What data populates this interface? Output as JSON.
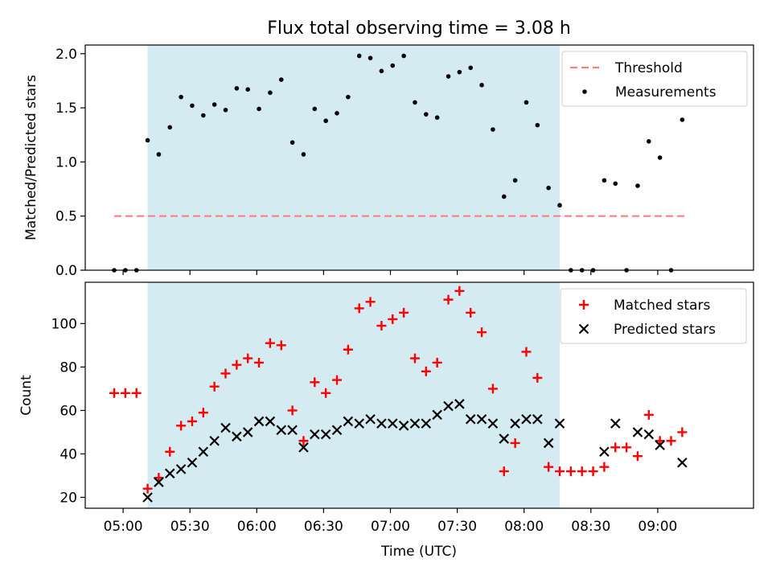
{
  "figure": {
    "title": "Flux total observing time = 3.08 h",
    "xlabel": "Time (UTC)",
    "x_ticks": [
      "05:00",
      "05:30",
      "06:00",
      "06:30",
      "07:00",
      "07:30",
      "08:00",
      "08:30",
      "09:00"
    ]
  },
  "colors": {
    "shade": "#d4ebf1",
    "threshold": "#ff7f7f",
    "measurement": "#000000",
    "matched": "#ff0000",
    "predicted": "#000000"
  },
  "chart_data": [
    {
      "type": "scatter",
      "ylabel": "Matched/Predicted stars",
      "xlim": [
        "04:43",
        "09:43"
      ],
      "ylim": [
        0,
        2.08
      ],
      "y_ticks": [
        0.0,
        0.5,
        1.0,
        1.5,
        2.0
      ],
      "y_tick_labels": [
        "0.0",
        "0.5",
        "1.0",
        "1.5",
        "2.0"
      ],
      "shaded_region": [
        "05:11",
        "08:16"
      ],
      "threshold": {
        "name": "Threshold",
        "y": 0.5,
        "x_range": [
          "04:56",
          "09:12"
        ],
        "style": "dashed"
      },
      "legend_position": "top-right",
      "series": [
        {
          "name": "Measurements",
          "x": [
            "04:56",
            "05:01",
            "05:06",
            "05:11",
            "05:16",
            "05:21",
            "05:26",
            "05:31",
            "05:36",
            "05:41",
            "05:46",
            "05:51",
            "05:56",
            "06:01",
            "06:06",
            "06:11",
            "06:16",
            "06:21",
            "06:26",
            "06:31",
            "06:36",
            "06:41",
            "06:46",
            "06:51",
            "06:56",
            "07:01",
            "07:06",
            "07:11",
            "07:16",
            "07:21",
            "07:26",
            "07:31",
            "07:36",
            "07:41",
            "07:46",
            "07:51",
            "07:56",
            "08:01",
            "08:06",
            "08:11",
            "08:16",
            "08:21",
            "08:26",
            "08:31",
            "08:36",
            "08:41",
            "08:46",
            "08:51",
            "08:56",
            "09:01",
            "09:06",
            "09:11"
          ],
          "y": [
            0,
            0,
            0,
            1.2,
            1.07,
            1.32,
            1.6,
            1.52,
            1.43,
            1.53,
            1.48,
            1.68,
            1.67,
            1.49,
            1.64,
            1.76,
            1.18,
            1.07,
            1.49,
            1.38,
            1.45,
            1.6,
            1.98,
            1.96,
            1.84,
            1.89,
            1.98,
            1.55,
            1.44,
            1.41,
            1.79,
            1.83,
            1.87,
            1.71,
            1.3,
            0.68,
            0.83,
            1.55,
            1.34,
            0.76,
            0.6,
            0,
            0,
            0,
            0.83,
            0.8,
            0,
            0.78,
            1.19,
            1.04,
            0,
            1.39
          ]
        }
      ]
    },
    {
      "type": "scatter",
      "ylabel": "Count",
      "xlim": [
        "04:43",
        "09:43"
      ],
      "ylim": [
        15,
        119
      ],
      "y_ticks": [
        20,
        40,
        60,
        80,
        100
      ],
      "y_tick_labels": [
        "20",
        "40",
        "60",
        "80",
        "100"
      ],
      "shaded_region": [
        "05:11",
        "08:16"
      ],
      "legend_position": "top-right",
      "series": [
        {
          "name": "Matched stars",
          "marker": "+",
          "x": [
            "04:56",
            "05:01",
            "05:06",
            "05:11",
            "05:16",
            "05:21",
            "05:26",
            "05:31",
            "05:36",
            "05:41",
            "05:46",
            "05:51",
            "05:56",
            "06:01",
            "06:06",
            "06:11",
            "06:16",
            "06:21",
            "06:26",
            "06:31",
            "06:36",
            "06:41",
            "06:46",
            "06:51",
            "06:56",
            "07:01",
            "07:06",
            "07:11",
            "07:16",
            "07:21",
            "07:26",
            "07:31",
            "07:36",
            "07:41",
            "07:46",
            "07:51",
            "07:56",
            "08:01",
            "08:06",
            "08:11",
            "08:16",
            "08:21",
            "08:26",
            "08:31",
            "08:36",
            "08:41",
            "08:46",
            "08:51",
            "08:56",
            "09:01",
            "09:06",
            "09:11"
          ],
          "y": [
            68,
            68,
            68,
            24,
            29,
            41,
            53,
            55,
            59,
            71,
            77,
            81,
            84,
            82,
            91,
            90,
            60,
            46,
            73,
            68,
            74,
            88,
            107,
            110,
            99,
            102,
            105,
            84,
            78,
            82,
            111,
            115,
            105,
            96,
            70,
            32,
            45,
            87,
            75,
            34,
            32,
            32,
            32,
            32,
            34,
            43,
            43,
            39,
            58,
            46,
            46,
            50
          ]
        },
        {
          "name": "Predicted stars",
          "marker": "x",
          "x": [
            "05:11",
            "05:16",
            "05:21",
            "05:26",
            "05:31",
            "05:36",
            "05:41",
            "05:46",
            "05:51",
            "05:56",
            "06:01",
            "06:06",
            "06:11",
            "06:16",
            "06:21",
            "06:26",
            "06:31",
            "06:36",
            "06:41",
            "06:46",
            "06:51",
            "06:56",
            "07:01",
            "07:06",
            "07:11",
            "07:16",
            "07:21",
            "07:26",
            "07:31",
            "07:36",
            "07:41",
            "07:46",
            "07:51",
            "07:56",
            "08:01",
            "08:06",
            "08:11",
            "08:16",
            "08:36",
            "08:41",
            "08:51",
            "08:56",
            "09:01",
            "09:11"
          ],
          "y": [
            20,
            27,
            31,
            33,
            36,
            41,
            46,
            52,
            48,
            50,
            55,
            55,
            51,
            51,
            43,
            49,
            49,
            51,
            55,
            54,
            56,
            54,
            54,
            53,
            54,
            54,
            58,
            62,
            63,
            56,
            56,
            54,
            47,
            54,
            56,
            56,
            45,
            54,
            41,
            54,
            50,
            49,
            44,
            36
          ]
        }
      ]
    }
  ]
}
